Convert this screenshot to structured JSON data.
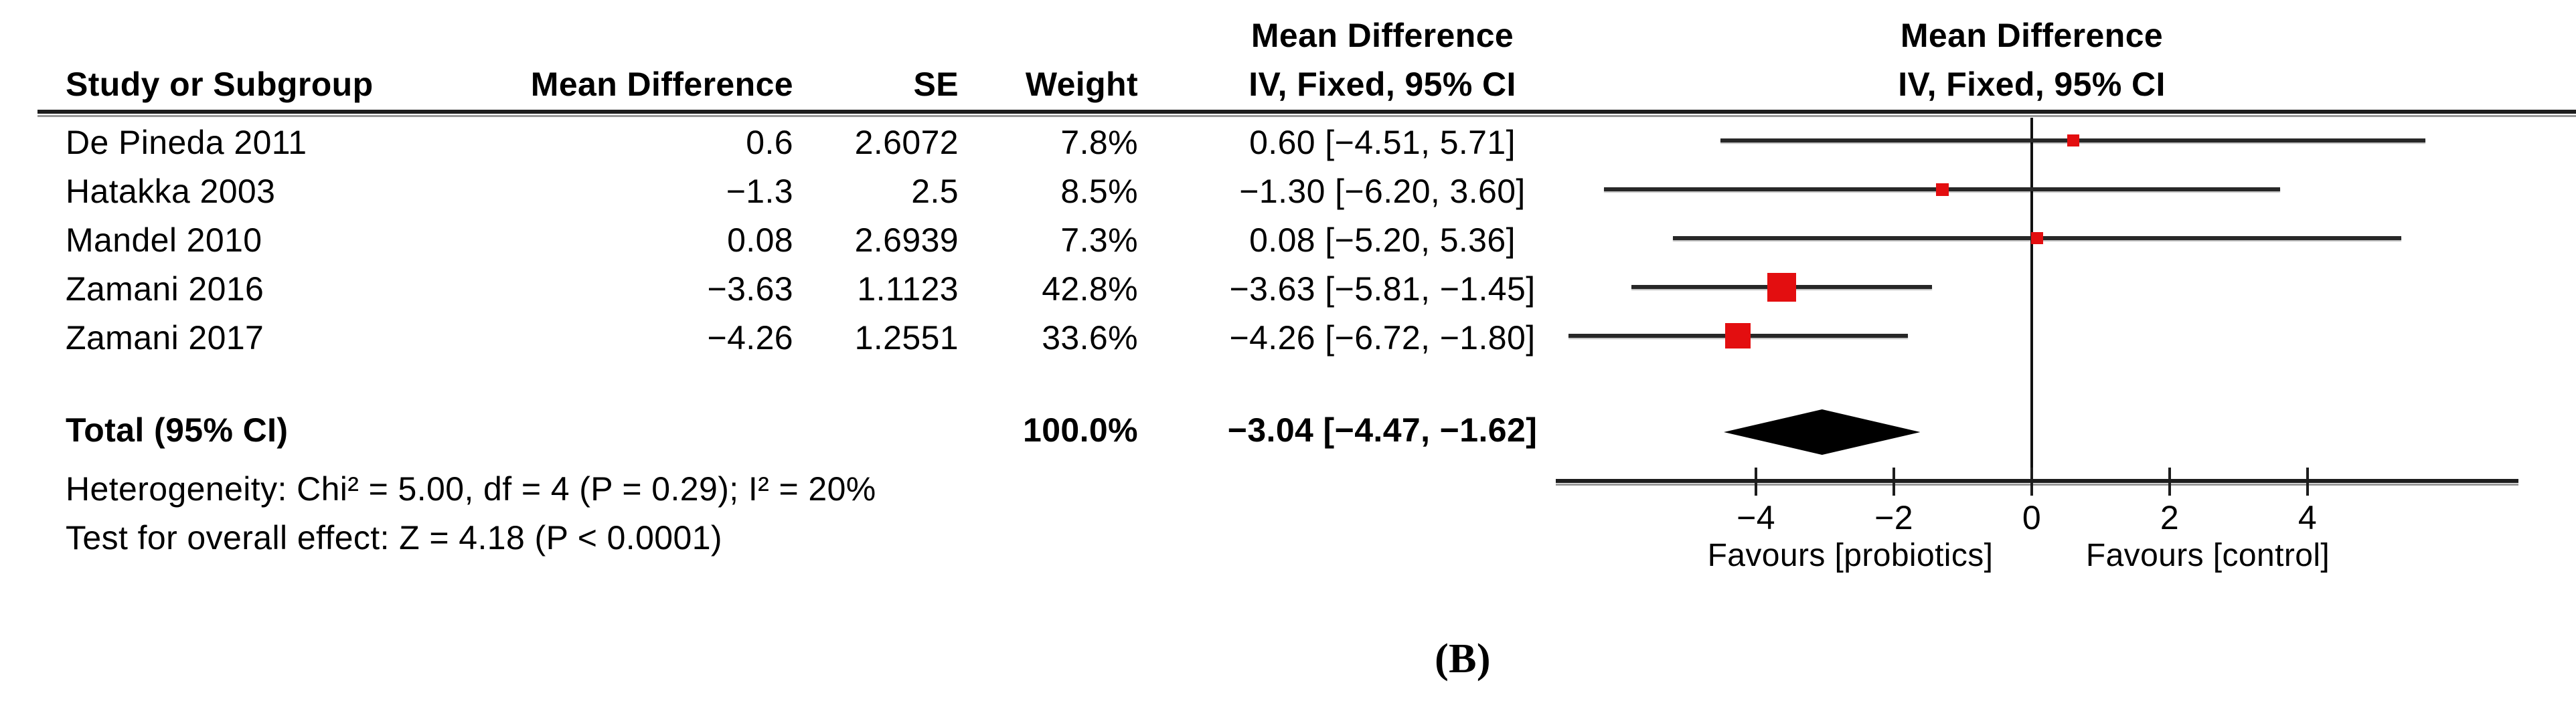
{
  "panel_label": "(B)",
  "table": {
    "group_header": "Mean Difference",
    "headers": {
      "study": "Study or Subgroup",
      "md": "Mean Difference",
      "se": "SE",
      "weight": "Weight",
      "iv": "IV, Fixed, 95% CI"
    },
    "rows": [
      {
        "study": "De Pineda 2011",
        "md": "0.6",
        "se": "2.6072",
        "weight": "7.8%",
        "ci": "0.60 [−4.51, 5.71]"
      },
      {
        "study": "Hatakka 2003",
        "md": "−1.3",
        "se": "2.5",
        "weight": "8.5%",
        "ci": "−1.30 [−6.20, 3.60]"
      },
      {
        "study": "Mandel 2010",
        "md": "0.08",
        "se": "2.6939",
        "weight": "7.3%",
        "ci": "0.08 [−5.20, 5.36]"
      },
      {
        "study": "Zamani 2016",
        "md": "−3.63",
        "se": "1.1123",
        "weight": "42.8%",
        "ci": "−3.63 [−5.81, −1.45]"
      },
      {
        "study": "Zamani 2017",
        "md": "−4.26",
        "se": "1.2551",
        "weight": "33.6%",
        "ci": "−4.26 [−6.72, −1.80]"
      }
    ],
    "total": {
      "label": "Total (95% CI)",
      "weight": "100.0%",
      "ci": "−3.04 [−4.47, −1.62]"
    },
    "heterogeneity": "Heterogeneity: Chi² = 5.00, df = 4 (P = 0.29); I² = 20%",
    "overall_effect": "Test for overall effect: Z = 4.18 (P < 0.0001)"
  },
  "plot": {
    "group_header": "Mean Difference",
    "subheader": "IV, Fixed, 95% CI",
    "favours_left": "Favours [probiotics]",
    "favours_right": "Favours [control]"
  },
  "chart_data": {
    "type": "forest",
    "effect_measure": "Mean Difference",
    "model": "IV, Fixed, 95% CI",
    "marker_color": "#e30e10",
    "diamond_color": "#000000",
    "x_axis": {
      "ticks": [
        -4,
        -2,
        0,
        2,
        4
      ],
      "range": [
        -6.9,
        7.05
      ],
      "zero_line": 0,
      "left_label": "Favours [probiotics]",
      "right_label": "Favours [control]"
    },
    "studies": [
      {
        "name": "De Pineda 2011",
        "mean": 0.6,
        "se": 2.6072,
        "weight_pct": 7.8,
        "lower": -4.51,
        "upper": 5.71
      },
      {
        "name": "Hatakka 2003",
        "mean": -1.3,
        "se": 2.5,
        "weight_pct": 8.5,
        "lower": -6.2,
        "upper": 3.6
      },
      {
        "name": "Mandel 2010",
        "mean": 0.08,
        "se": 2.6939,
        "weight_pct": 7.3,
        "lower": -5.2,
        "upper": 5.36
      },
      {
        "name": "Zamani 2016",
        "mean": -3.63,
        "se": 1.1123,
        "weight_pct": 42.8,
        "lower": -5.81,
        "upper": -1.45
      },
      {
        "name": "Zamani 2017",
        "mean": -4.26,
        "se": 1.2551,
        "weight_pct": 33.6,
        "lower": -6.72,
        "upper": -1.8
      }
    ],
    "total": {
      "mean": -3.04,
      "lower": -4.47,
      "upper": -1.62,
      "weight_pct": 100.0,
      "heterogeneity": {
        "chi2": 5.0,
        "df": 4,
        "p": 0.29,
        "i2_pct": 20
      },
      "overall_effect": {
        "z": 4.18,
        "p": "< 0.0001"
      }
    }
  }
}
